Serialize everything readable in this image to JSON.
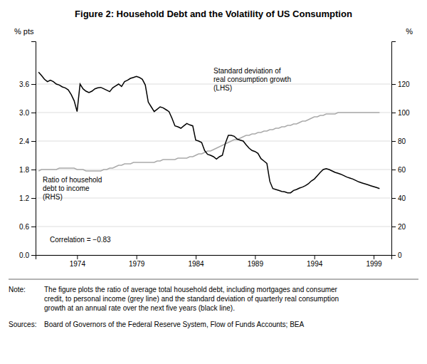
{
  "chart_data": {
    "type": "line",
    "title": "Figure 2: Household Debt and the Volatility of US Consumption",
    "y_label": "% pts",
    "y2_label": "%",
    "annotations": [
      "Standard deviation of\nreal consumption growth\n(LHS)",
      "Ratio of household\ndebt to income\n(RHS)",
      "Correlation = −0.83"
    ],
    "footnotes": [
      {
        "label": "Note:",
        "text": "The figure plots the ratio of average total household debt, including mortgages and consumer\ncredit, to personal income (grey line) and the standard deviation of quarterly real consumption\ngrowth at an annual rate over the next five years (black line)."
      },
      {
        "label": "Sources:",
        "text": "Board of Governors of the Federal Reserve System, Flow of Funds Accounts; BEA"
      }
    ],
    "grid": true,
    "xlim": [
      1970.5,
      2000.5
    ],
    "xticks": [
      1974,
      1979,
      1984,
      1989,
      1994,
      1999
    ],
    "ylim": [
      0.0,
      4.5
    ],
    "yticks": [
      {
        "value": 0.0,
        "label": "0.0"
      },
      0.6,
      1.2,
      1.8,
      2.4,
      {
        "value": 3.0,
        "label": "3.0"
      },
      3.6
    ],
    "y2lim": [
      0,
      150
    ],
    "y2ticks": [
      0,
      20,
      40,
      60,
      80,
      100,
      120
    ],
    "x": [
      1970.75,
      1971.0,
      1971.25,
      1971.5,
      1971.75,
      1972.0,
      1972.25,
      1972.5,
      1972.75,
      1973.0,
      1973.25,
      1973.5,
      1973.75,
      1974.0,
      1974.25,
      1974.5,
      1974.75,
      1975.0,
      1975.25,
      1975.5,
      1975.75,
      1976.0,
      1976.25,
      1976.5,
      1976.75,
      1977.0,
      1977.25,
      1977.5,
      1977.75,
      1978.0,
      1978.25,
      1978.5,
      1978.75,
      1979.0,
      1979.25,
      1979.5,
      1979.75,
      1980.0,
      1980.25,
      1980.5,
      1980.75,
      1981.0,
      1981.25,
      1981.5,
      1981.75,
      1982.0,
      1982.25,
      1982.5,
      1982.75,
      1983.0,
      1983.25,
      1983.5,
      1983.75,
      1984.0,
      1984.25,
      1984.5,
      1984.75,
      1985.0,
      1985.25,
      1985.5,
      1985.75,
      1986.0,
      1986.25,
      1986.5,
      1986.75,
      1987.0,
      1987.25,
      1987.5,
      1987.75,
      1988.0,
      1988.25,
      1988.5,
      1988.75,
      1989.0,
      1989.25,
      1989.5,
      1989.75,
      1990.0,
      1990.25,
      1990.5,
      1990.75,
      1991.0,
      1991.25,
      1991.5,
      1991.75,
      1992.0,
      1992.25,
      1992.5,
      1992.75,
      1993.0,
      1993.25,
      1993.5,
      1993.75,
      1994.0,
      1994.25,
      1994.5,
      1994.75,
      1995.0,
      1995.25,
      1995.5,
      1995.75,
      1996.0,
      1996.25,
      1996.5,
      1996.75,
      1997.0,
      1997.25,
      1997.5,
      1997.75,
      1998.0,
      1998.25,
      1998.5,
      1998.75,
      1999.0,
      1999.25,
      1999.5
    ],
    "series": [
      {
        "color": "#aaaaaa",
        "axis": "y2",
        "values": [
          59,
          60,
          60,
          60,
          60,
          60,
          60,
          61,
          61,
          61,
          61,
          61,
          61,
          60,
          60,
          60,
          59,
          59,
          59,
          59,
          59,
          59,
          60,
          60,
          61,
          61,
          62,
          63,
          63,
          64,
          64,
          64,
          65,
          65,
          65,
          65,
          65,
          65,
          65,
          65,
          66,
          66,
          67,
          67,
          67,
          67,
          67,
          68,
          68,
          68,
          68,
          69,
          69,
          70,
          71,
          71,
          72,
          73,
          73,
          74,
          75,
          76,
          77,
          78,
          79,
          80,
          81,
          81,
          82,
          83,
          84,
          84,
          85,
          85,
          86,
          86,
          87,
          87,
          88,
          88,
          89,
          89,
          90,
          90,
          91,
          91,
          92,
          92,
          93,
          94,
          94,
          95,
          96,
          97,
          97,
          98,
          98,
          99,
          99,
          99,
          99,
          100,
          100,
          100,
          100,
          100,
          100,
          100,
          100,
          100,
          100,
          100,
          100,
          100,
          100,
          100
        ]
      },
      {
        "color": "#000000",
        "values": [
          3.85,
          3.78,
          3.7,
          3.65,
          3.68,
          3.65,
          3.6,
          3.58,
          3.54,
          3.52,
          3.48,
          3.38,
          3.25,
          3.02,
          3.6,
          3.5,
          3.45,
          3.42,
          3.45,
          3.5,
          3.52,
          3.53,
          3.5,
          3.47,
          3.44,
          3.52,
          3.56,
          3.6,
          3.55,
          3.65,
          3.68,
          3.72,
          3.74,
          3.76,
          3.74,
          3.7,
          3.58,
          3.22,
          3.12,
          3.02,
          3.07,
          3.12,
          3.1,
          3.06,
          3.02,
          2.88,
          2.72,
          2.7,
          2.67,
          2.72,
          2.77,
          2.74,
          2.72,
          2.42,
          2.4,
          2.37,
          2.2,
          2.12,
          2.1,
          2.07,
          2.02,
          2.07,
          2.1,
          2.35,
          2.52,
          2.52,
          2.5,
          2.44,
          2.42,
          2.4,
          2.32,
          2.25,
          2.2,
          2.18,
          2.14,
          2.03,
          1.98,
          1.93,
          1.55,
          1.4,
          1.38,
          1.36,
          1.34,
          1.33,
          1.31,
          1.31,
          1.36,
          1.38,
          1.41,
          1.43,
          1.46,
          1.5,
          1.56,
          1.6,
          1.67,
          1.74,
          1.8,
          1.82,
          1.8,
          1.77,
          1.74,
          1.72,
          1.7,
          1.67,
          1.64,
          1.62,
          1.6,
          1.57,
          1.54,
          1.52,
          1.5,
          1.48,
          1.46,
          1.44,
          1.42,
          1.4
        ]
      }
    ]
  }
}
